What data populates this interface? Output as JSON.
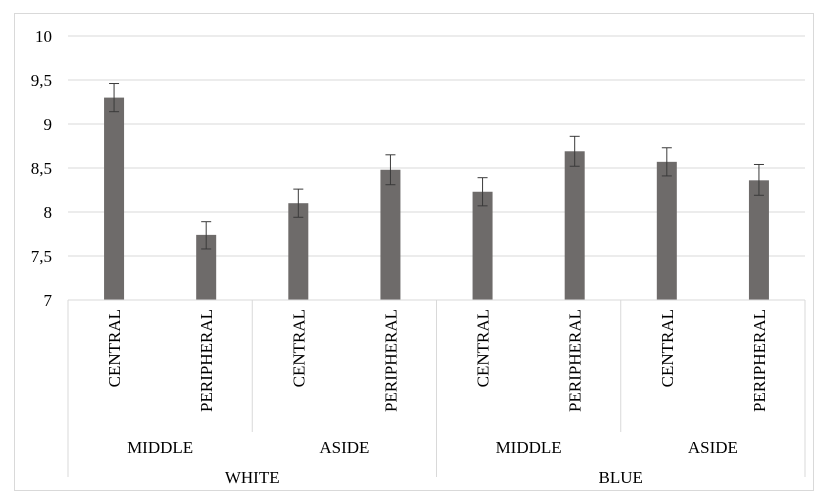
{
  "chart_data": {
    "type": "bar",
    "title": "",
    "xlabel": "",
    "ylabel": "",
    "ylim": [
      7,
      10
    ],
    "y_ticks": [
      7,
      7.5,
      8,
      8.5,
      9,
      9.5,
      10
    ],
    "y_tick_labels": [
      "7",
      "7,5",
      "8",
      "8,5",
      "9",
      "9,5",
      "10"
    ],
    "grid": true,
    "legend": "none",
    "bar_color": "#6e6b6a",
    "categories": [
      {
        "level1": "CENTRAL",
        "level2": "MIDDLE",
        "level3": "WHITE"
      },
      {
        "level1": "PERIPHERAL",
        "level2": "MIDDLE",
        "level3": "WHITE"
      },
      {
        "level1": "CENTRAL",
        "level2": "ASIDE",
        "level3": "WHITE"
      },
      {
        "level1": "PERIPHERAL",
        "level2": "ASIDE",
        "level3": "WHITE"
      },
      {
        "level1": "CENTRAL",
        "level2": "MIDDLE",
        "level3": "BLUE"
      },
      {
        "level1": "PERIPHERAL",
        "level2": "MIDDLE",
        "level3": "BLUE"
      },
      {
        "level1": "CENTRAL",
        "level2": "ASIDE",
        "level3": "BLUE"
      },
      {
        "level1": "PERIPHERAL",
        "level2": "ASIDE",
        "level3": "BLUE"
      }
    ],
    "level2_groups": [
      "MIDDLE",
      "ASIDE",
      "MIDDLE",
      "ASIDE"
    ],
    "level3_groups": [
      "WHITE",
      "BLUE"
    ],
    "values": [
      9.3,
      7.74,
      8.1,
      8.48,
      8.23,
      8.69,
      8.57,
      8.36
    ],
    "error_low": [
      9.14,
      7.58,
      7.94,
      8.31,
      8.07,
      8.52,
      8.41,
      8.19
    ],
    "error_high": [
      9.46,
      7.89,
      8.26,
      8.65,
      8.39,
      8.86,
      8.73,
      8.54
    ]
  }
}
